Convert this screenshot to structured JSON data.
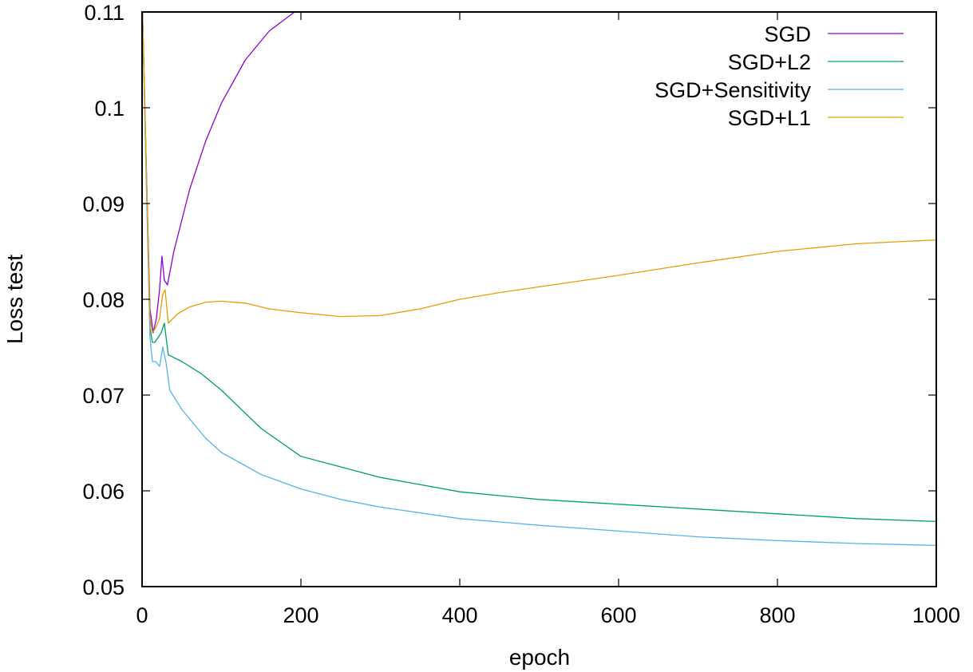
{
  "chart_data": {
    "type": "line",
    "title": "",
    "xlabel": "epoch",
    "ylabel": "Loss test",
    "xlim": [
      0,
      1000
    ],
    "ylim": [
      0.05,
      0.11
    ],
    "xticks": [
      0,
      200,
      400,
      600,
      800,
      1000
    ],
    "xtick_labels": [
      "0",
      "200",
      "400",
      "600",
      "800",
      "1000"
    ],
    "yticks": [
      0.05,
      0.06,
      0.07,
      0.08,
      0.09,
      0.1,
      0.11
    ],
    "ytick_labels": [
      "0.05",
      "0.06",
      "0.07",
      "0.08",
      "0.09",
      "0.1",
      "0.11"
    ],
    "grid": false,
    "legend_position": "top-right",
    "series": [
      {
        "name": "SGD",
        "color": "#9400d3",
        "x": [
          0,
          5,
          10,
          14,
          18,
          22,
          25,
          28,
          32,
          40,
          60,
          80,
          100,
          130,
          160,
          200
        ],
        "values": [
          0.112,
          0.095,
          0.079,
          0.0765,
          0.078,
          0.081,
          0.0845,
          0.082,
          0.0815,
          0.085,
          0.0915,
          0.0965,
          0.1005,
          0.105,
          0.108,
          0.1105
        ]
      },
      {
        "name": "SGD+L2",
        "color": "#009e73",
        "x": [
          0,
          5,
          10,
          13,
          16,
          20,
          24,
          28,
          33,
          50,
          75,
          100,
          150,
          200,
          250,
          300,
          400,
          500,
          600,
          700,
          800,
          900,
          1000
        ],
        "values": [
          0.112,
          0.094,
          0.077,
          0.0755,
          0.0755,
          0.076,
          0.0765,
          0.0775,
          0.0742,
          0.0735,
          0.0722,
          0.0705,
          0.0665,
          0.0636,
          0.0625,
          0.0614,
          0.0599,
          0.0591,
          0.0586,
          0.0581,
          0.0576,
          0.0571,
          0.0568
        ]
      },
      {
        "name": "SGD+Sensitivity",
        "color": "#56b4e9",
        "x": [
          0,
          5,
          10,
          13,
          17,
          22,
          26,
          30,
          35,
          50,
          80,
          100,
          150,
          200,
          250,
          300,
          400,
          500,
          600,
          700,
          800,
          900,
          1000
        ],
        "values": [
          0.112,
          0.093,
          0.076,
          0.0735,
          0.0735,
          0.073,
          0.075,
          0.0735,
          0.0705,
          0.0685,
          0.0655,
          0.064,
          0.0617,
          0.0602,
          0.0591,
          0.0583,
          0.0571,
          0.0564,
          0.0558,
          0.0552,
          0.0548,
          0.0545,
          0.0543
        ]
      },
      {
        "name": "SGD+L1",
        "color": "#e69f00",
        "x": [
          0,
          5,
          10,
          13,
          17,
          22,
          26,
          29,
          33,
          45,
          60,
          80,
          100,
          130,
          160,
          200,
          250,
          300,
          350,
          400,
          450,
          500,
          600,
          700,
          800,
          900,
          1000
        ],
        "values": [
          0.112,
          0.095,
          0.078,
          0.0765,
          0.077,
          0.078,
          0.0805,
          0.081,
          0.0775,
          0.0785,
          0.0792,
          0.0797,
          0.0798,
          0.0796,
          0.079,
          0.0786,
          0.0782,
          0.0783,
          0.079,
          0.08,
          0.0807,
          0.0813,
          0.0825,
          0.0838,
          0.085,
          0.0858,
          0.0862
        ]
      }
    ]
  },
  "axes": {
    "xlabel": "epoch",
    "ylabel": "Loss test"
  },
  "legend": {
    "items": [
      {
        "label": "SGD",
        "color": "#9400d3"
      },
      {
        "label": "SGD+L2",
        "color": "#009e73"
      },
      {
        "label": "SGD+Sensitivity",
        "color": "#56b4e9"
      },
      {
        "label": "SGD+L1",
        "color": "#e69f00"
      }
    ]
  }
}
